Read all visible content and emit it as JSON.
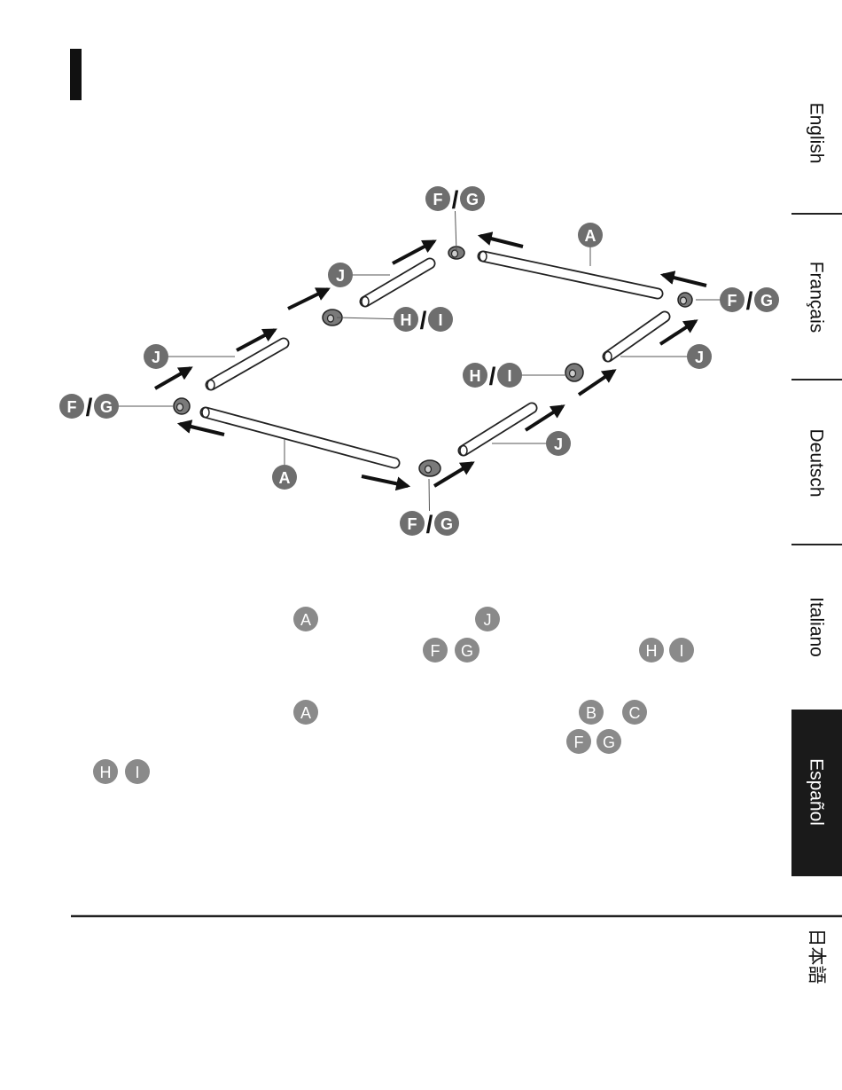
{
  "tabs": [
    "English",
    "Français",
    "Deutsch",
    "Italiano",
    "Español",
    "日本語"
  ],
  "active_tab": 4,
  "diagram": {
    "separator": "/",
    "callouts": [
      {
        "letters": [
          "F",
          "G"
        ]
      },
      {
        "letters": [
          "A"
        ]
      },
      {
        "letters": [
          "J"
        ]
      },
      {
        "letters": [
          "H",
          "I"
        ]
      },
      {
        "letters": [
          "F",
          "G"
        ]
      },
      {
        "letters": [
          "J"
        ]
      },
      {
        "letters": [
          "H",
          "I"
        ]
      },
      {
        "letters": [
          "J"
        ]
      },
      {
        "letters": [
          "F",
          "G"
        ]
      },
      {
        "letters": [
          "J"
        ]
      },
      {
        "letters": [
          "A"
        ]
      },
      {
        "letters": [
          "F",
          "G"
        ]
      }
    ]
  },
  "text_markers": [
    [
      "A",
      "J"
    ],
    [
      "F",
      "G",
      "H",
      "I"
    ],
    [
      "A",
      "B",
      "C"
    ],
    [
      "F",
      "G"
    ],
    [
      "H",
      "I"
    ]
  ]
}
